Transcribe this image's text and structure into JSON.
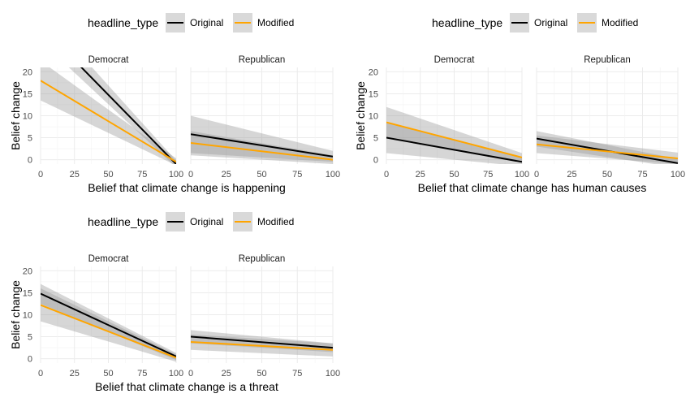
{
  "chart_data": [
    {
      "type": "line",
      "xlabel": "Belief that climate change is happening",
      "ylabel": "Belief change",
      "legend": {
        "title": "headline_type",
        "placement": "top",
        "entries": [
          "Original",
          "Modified"
        ]
      },
      "xlim": [
        0,
        100
      ],
      "ylim": [
        -1,
        21
      ],
      "x_ticks": [
        0,
        25,
        50,
        75,
        100
      ],
      "y_ticks": [
        0,
        5,
        10,
        15,
        20
      ],
      "grid": true,
      "panels": [
        {
          "strip": "Democrat",
          "series": [
            {
              "name": "Original",
              "x": [
                0,
                100
              ],
              "y": [
                30.5,
                -1
              ],
              "lower": [
                27,
                -1.8
              ],
              "upper": [
                34,
                -0.2
              ]
            },
            {
              "name": "Modified",
              "x": [
                0,
                100
              ],
              "y": [
                18,
                -0.5
              ],
              "lower": [
                13.5,
                -1.3
              ],
              "upper": [
                22.5,
                0.3
              ]
            }
          ]
        },
        {
          "strip": "Republican",
          "series": [
            {
              "name": "Original",
              "x": [
                0,
                100
              ],
              "y": [
                5.8,
                0.7
              ],
              "lower": [
                1.5,
                -0.5
              ],
              "upper": [
                10,
                2
              ]
            },
            {
              "name": "Modified",
              "x": [
                0,
                100
              ],
              "y": [
                3.8,
                0
              ],
              "lower": [
                1,
                -1
              ],
              "upper": [
                6.5,
                1
              ]
            }
          ]
        }
      ]
    },
    {
      "type": "line",
      "xlabel": "Belief that climate change has human causes",
      "ylabel": "Belief change",
      "legend": {
        "title": "headline_type",
        "placement": "top",
        "entries": [
          "Original",
          "Modified"
        ]
      },
      "xlim": [
        0,
        100
      ],
      "ylim": [
        -1,
        21
      ],
      "x_ticks": [
        0,
        25,
        50,
        75,
        100
      ],
      "y_ticks": [
        0,
        5,
        10,
        15,
        20
      ],
      "grid": true,
      "panels": [
        {
          "strip": "Democrat",
          "series": [
            {
              "name": "Original",
              "x": [
                0,
                100
              ],
              "y": [
                5,
                -0.5
              ],
              "lower": [
                1.5,
                -1.5
              ],
              "upper": [
                8.5,
                0.5
              ]
            },
            {
              "name": "Modified",
              "x": [
                0,
                100
              ],
              "y": [
                8.5,
                0.5
              ],
              "lower": [
                5,
                -0.5
              ],
              "upper": [
                12,
                1.5
              ]
            }
          ]
        },
        {
          "strip": "Republican",
          "series": [
            {
              "name": "Original",
              "x": [
                0,
                100
              ],
              "y": [
                4.8,
                -0.8
              ],
              "lower": [
                3,
                -1.8
              ],
              "upper": [
                6.5,
                0.2
              ]
            },
            {
              "name": "Modified",
              "x": [
                0,
                100
              ],
              "y": [
                3.5,
                0.3
              ],
              "lower": [
                1.5,
                -1
              ],
              "upper": [
                5.5,
                1.6
              ]
            }
          ]
        }
      ]
    },
    {
      "type": "line",
      "xlabel": "Belief that climate change is a threat",
      "ylabel": "Belief change",
      "legend": {
        "title": "headline_type",
        "placement": "top",
        "entries": [
          "Original",
          "Modified"
        ]
      },
      "xlim": [
        0,
        100
      ],
      "ylim": [
        -1,
        21
      ],
      "x_ticks": [
        0,
        25,
        50,
        75,
        100
      ],
      "y_ticks": [
        0,
        5,
        10,
        15,
        20
      ],
      "grid": true,
      "panels": [
        {
          "strip": "Democrat",
          "series": [
            {
              "name": "Original",
              "x": [
                0,
                100
              ],
              "y": [
                14.8,
                0.5
              ],
              "lower": [
                12.5,
                -0.3
              ],
              "upper": [
                17,
                1.3
              ]
            },
            {
              "name": "Modified",
              "x": [
                0,
                100
              ],
              "y": [
                12.2,
                0.2
              ],
              "lower": [
                8.5,
                -0.7
              ],
              "upper": [
                16,
                1
              ]
            }
          ]
        },
        {
          "strip": "Republican",
          "series": [
            {
              "name": "Original",
              "x": [
                0,
                100
              ],
              "y": [
                5,
                2.5
              ],
              "lower": [
                3.5,
                1.5
              ],
              "upper": [
                6.5,
                3.5
              ]
            },
            {
              "name": "Modified",
              "x": [
                0,
                100
              ],
              "y": [
                3.8,
                2
              ],
              "lower": [
                2,
                0.5
              ],
              "upper": [
                5.5,
                3.5
              ]
            }
          ]
        }
      ]
    }
  ],
  "colors": {
    "Original": "#000000",
    "Modified": "#FFA500",
    "ribbon": "#999999",
    "grid": "#ebebeb"
  }
}
